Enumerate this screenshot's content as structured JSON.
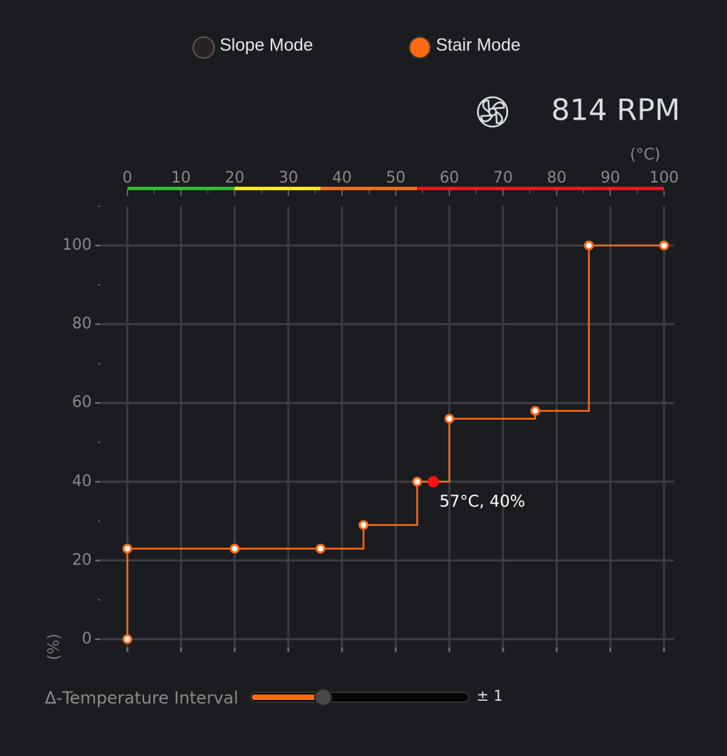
{
  "modes": [
    {
      "label": "Slope Mode",
      "selected": false
    },
    {
      "label": "Stair Mode",
      "selected": true
    }
  ],
  "fan_speed": "814 RPM",
  "chart_data": {
    "type": "line",
    "step": "after",
    "xlabel": "(°C)",
    "ylabel": "(%)",
    "x_axis_position": "top",
    "grid": true,
    "xlim": [
      0,
      100
    ],
    "ylim": [
      0,
      110
    ],
    "xticks": [
      0,
      10,
      20,
      30,
      40,
      50,
      60,
      70,
      80,
      90,
      100
    ],
    "yticks": [
      0,
      20,
      40,
      60,
      80,
      100
    ],
    "y_minor_ticks": [
      10,
      30,
      50,
      70,
      90,
      110
    ],
    "zones": [
      {
        "from": 0,
        "to": 20,
        "color": "#22c322"
      },
      {
        "from": 20,
        "to": 36,
        "color": "#ffee00"
      },
      {
        "from": 36,
        "to": 54,
        "color": "#ff6a10"
      },
      {
        "from": 54,
        "to": 100,
        "color": "#ff1010"
      }
    ],
    "x": [
      0,
      0,
      20,
      36,
      44,
      54,
      60,
      76,
      86,
      100
    ],
    "values": [
      0,
      23,
      23,
      23,
      29,
      40,
      56,
      58,
      100,
      100
    ],
    "color": "#ff6a10",
    "current": {
      "x": 57,
      "y": 40,
      "label": "57°C, 40%",
      "color": "#ff1010"
    }
  },
  "slider": {
    "label": "Δ-Temperature Interval",
    "min": 0,
    "max": 3,
    "value": 1,
    "value_label": "± 1"
  }
}
